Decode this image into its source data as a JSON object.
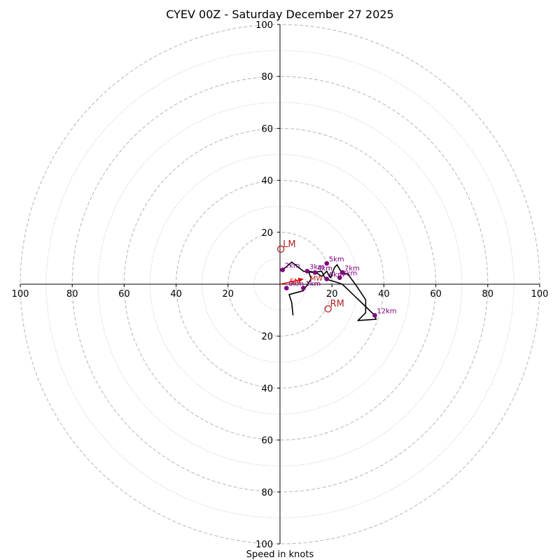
{
  "chart_data": {
    "type": "hodograph",
    "title": "CYEV 00Z - Saturday December 27 2025",
    "xlabel": "Speed in knots",
    "units": "knots",
    "max_speed": 100,
    "ring_step_dashed": 20,
    "ring_step_dotted": 10,
    "axis_tick_values": [
      20,
      40,
      60,
      80,
      100
    ],
    "axis_tick_labels": [
      "20",
      "40",
      "60",
      "80",
      "100"
    ],
    "grid": true,
    "colors": {
      "trace": "#000000",
      "height_marker": "#800080",
      "motion": "#b22222",
      "shear_arrow": "#dd0000",
      "grid": "#bbbbbb"
    },
    "hodograph_trace": [
      [
        5,
        -12
      ],
      [
        4.5,
        -7
      ],
      [
        3.5,
        -4
      ],
      [
        9,
        -2.5
      ],
      [
        12,
        2
      ],
      [
        11,
        5
      ],
      [
        14,
        4.5
      ],
      [
        16,
        3
      ],
      [
        18,
        5
      ],
      [
        19,
        3
      ],
      [
        19.5,
        2.5
      ],
      [
        21,
        6.5
      ],
      [
        22,
        7.5
      ],
      [
        24,
        4
      ],
      [
        26,
        4
      ],
      [
        29,
        0
      ],
      [
        31,
        -3
      ],
      [
        33,
        -6
      ],
      [
        33,
        -11
      ],
      [
        30,
        -14
      ],
      [
        37,
        -13.5
      ],
      [
        36.5,
        -12
      ],
      [
        24,
        0
      ],
      [
        21,
        1
      ],
      [
        17.5,
        2
      ],
      [
        16,
        5
      ],
      [
        13,
        4.5
      ],
      [
        9,
        5
      ],
      [
        4.5,
        8.5
      ],
      [
        1,
        5.5
      ]
    ],
    "height_markers": [
      {
        "label": "0km",
        "u": 2.5,
        "v": -1.5
      },
      {
        "label": "1km",
        "u": 9,
        "v": -1.5
      },
      {
        "label": "2km",
        "u": 1,
        "v": 5.5
      },
      {
        "label": "3km",
        "u": 10.5,
        "v": 5
      },
      {
        "label": "4km",
        "u": 13.5,
        "v": 4.5
      },
      {
        "label": "5km",
        "u": 18,
        "v": 8
      },
      {
        "label": "6km",
        "u": 18,
        "v": 2
      },
      {
        "label": "7km",
        "u": 24,
        "v": 4.5
      },
      {
        "label": "8km",
        "u": 23,
        "v": 2.5
      },
      {
        "label": "12km",
        "u": 36.5,
        "v": -12
      }
    ],
    "storm_motion": [
      {
        "label": "LM",
        "u": 0.3,
        "v": 13.5
      },
      {
        "label": "RM",
        "u": 18.5,
        "v": -9.5
      }
    ],
    "shear_arrow": {
      "label": "SM",
      "from": [
        0,
        0
      ],
      "to": [
        9,
        2
      ]
    },
    "mean_wind_marker": {
      "label": "MW",
      "u": 11,
      "v": 3
    }
  }
}
